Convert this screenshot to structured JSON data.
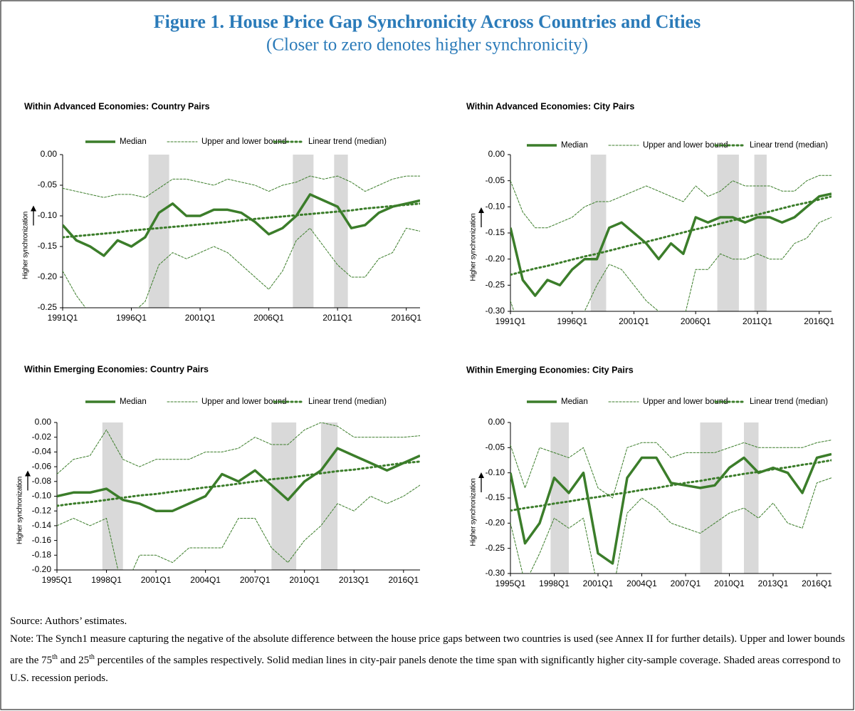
{
  "header": {
    "title": "Figure 1. House Price Gap Synchronicity Across Countries and Cities",
    "subtitle": "(Closer to zero denotes higher synchronicity)"
  },
  "chart_data": [
    {
      "type": "line",
      "title": "Within Advanced Economies: Country Pairs",
      "y_label": "Higher synchronization",
      "categories": [
        "1991Q1",
        null,
        null,
        null,
        null,
        "1996Q1",
        null,
        null,
        null,
        null,
        "2001Q1",
        null,
        null,
        null,
        null,
        "2006Q1",
        null,
        null,
        null,
        null,
        "2011Q1",
        null,
        null,
        null,
        null,
        "2016Q1",
        null
      ],
      "xlim": [
        1991,
        2017
      ],
      "shaded_periods": [
        [
          1997.25,
          1998.75
        ],
        [
          2007.75,
          2009.25
        ],
        [
          2010.75,
          2011.75
        ]
      ],
      "ylim": [
        -0.25,
        0
      ],
      "yticks": [
        {
          "value": 0,
          "label": "0.00"
        },
        -0.05,
        {
          "value": -0.1,
          "label": "-0.10"
        },
        -0.15,
        {
          "value": -0.2,
          "label": "-0.20"
        },
        -0.25
      ],
      "series": [
        {
          "name": "Median",
          "color": "#3b7d2a",
          "values": [
            -0.115,
            -0.14,
            -0.15,
            -0.165,
            -0.14,
            -0.15,
            -0.135,
            -0.095,
            -0.08,
            -0.1,
            -0.1,
            -0.09,
            -0.09,
            -0.095,
            -0.11,
            -0.13,
            -0.12,
            -0.1,
            -0.065,
            -0.075,
            -0.085,
            -0.12,
            -0.115,
            -0.095,
            -0.085,
            -0.08,
            -0.075
          ]
        },
        {
          "name": "Upper and lower bound",
          "color": "#3b7d2a",
          "values": [
            -0.055,
            -0.06,
            -0.065,
            -0.07,
            -0.065,
            -0.065,
            -0.07,
            -0.055,
            -0.04,
            -0.04,
            -0.045,
            -0.05,
            -0.04,
            -0.045,
            -0.05,
            -0.06,
            -0.05,
            -0.045,
            -0.035,
            -0.04,
            -0.035,
            -0.045,
            -0.06,
            -0.05,
            -0.04,
            -0.035,
            -0.035
          ],
          "lower": [
            -0.19,
            -0.23,
            -0.26,
            -0.28,
            -0.27,
            -0.26,
            -0.24,
            -0.18,
            -0.16,
            -0.17,
            -0.16,
            -0.15,
            -0.16,
            -0.18,
            -0.2,
            -0.22,
            -0.19,
            -0.14,
            -0.12,
            -0.15,
            -0.18,
            -0.2,
            -0.2,
            -0.17,
            -0.16,
            -0.12,
            -0.125
          ]
        },
        {
          "name": "Linear trend (median)",
          "color": "#3b7d2a",
          "values": [
            -0.135,
            -0.133,
            -0.131,
            -0.129,
            -0.127,
            -0.124,
            -0.122,
            -0.12,
            -0.118,
            -0.116,
            -0.114,
            -0.112,
            -0.11,
            -0.107,
            -0.105,
            -0.103,
            -0.101,
            -0.099,
            -0.097,
            -0.095,
            -0.093,
            -0.091,
            -0.088,
            -0.086,
            -0.084,
            -0.082,
            -0.08
          ]
        }
      ]
    },
    {
      "type": "line",
      "title": "Within Advanced Economies: City Pairs",
      "y_label": "Higher synchronization",
      "categories": [
        "1991Q1",
        null,
        null,
        null,
        null,
        "1996Q1",
        null,
        null,
        null,
        null,
        "2001Q1",
        null,
        null,
        null,
        null,
        "2006Q1",
        null,
        null,
        null,
        null,
        "2011Q1",
        null,
        null,
        null,
        null,
        "2016Q1",
        null
      ],
      "xlim": [
        1991,
        2017
      ],
      "shaded_periods": [
        [
          1997.5,
          1998.75
        ],
        [
          2007.75,
          2009.5
        ],
        [
          2010.75,
          2011.75
        ]
      ],
      "ylim": [
        -0.3,
        0
      ],
      "yticks": [
        {
          "value": 0,
          "label": "0.00"
        },
        -0.05,
        {
          "value": -0.1,
          "label": "-0.10"
        },
        -0.15,
        {
          "value": -0.2,
          "label": "-0.20"
        },
        -0.25,
        {
          "value": -0.3,
          "label": "-0.30"
        }
      ],
      "series": [
        {
          "name": "Median",
          "color": "#3b7d2a",
          "values": [
            -0.14,
            -0.24,
            -0.27,
            -0.24,
            -0.25,
            -0.22,
            -0.2,
            -0.2,
            -0.14,
            -0.13,
            -0.15,
            -0.17,
            -0.2,
            -0.17,
            -0.19,
            -0.12,
            -0.13,
            -0.12,
            -0.12,
            -0.13,
            -0.12,
            -0.12,
            -0.13,
            -0.12,
            -0.1,
            -0.08,
            -0.075
          ]
        },
        {
          "name": "Upper and lower bound",
          "color": "#3b7d2a",
          "values": [
            -0.05,
            -0.11,
            -0.14,
            -0.14,
            -0.13,
            -0.12,
            -0.1,
            -0.09,
            -0.09,
            -0.08,
            -0.07,
            -0.06,
            -0.07,
            -0.08,
            -0.09,
            -0.06,
            -0.08,
            -0.07,
            -0.05,
            -0.06,
            -0.06,
            -0.06,
            -0.07,
            -0.07,
            -0.05,
            -0.04,
            -0.04
          ],
          "lower": [
            -0.28,
            -0.35,
            -0.38,
            -0.36,
            -0.34,
            -0.32,
            -0.3,
            -0.25,
            -0.21,
            -0.22,
            -0.25,
            -0.28,
            -0.3,
            -0.32,
            -0.32,
            -0.22,
            -0.22,
            -0.19,
            -0.2,
            -0.2,
            -0.19,
            -0.2,
            -0.2,
            -0.17,
            -0.16,
            -0.13,
            -0.12
          ]
        },
        {
          "name": "Linear trend (median)",
          "color": "#3b7d2a",
          "values": [
            -0.23,
            -0.224,
            -0.218,
            -0.213,
            -0.207,
            -0.201,
            -0.195,
            -0.19,
            -0.184,
            -0.178,
            -0.172,
            -0.167,
            -0.161,
            -0.155,
            -0.149,
            -0.143,
            -0.138,
            -0.132,
            -0.126,
            -0.12,
            -0.115,
            -0.109,
            -0.103,
            -0.097,
            -0.092,
            -0.086,
            -0.08
          ]
        }
      ]
    },
    {
      "type": "line",
      "title": "Within Emerging Economies: Country Pairs",
      "y_label": "Higher synchronization",
      "categories": [
        "1995Q1",
        null,
        null,
        "1998Q1",
        null,
        null,
        "2001Q1",
        null,
        null,
        "2004Q1",
        null,
        null,
        "2007Q1",
        null,
        null,
        "2010Q1",
        null,
        null,
        "2013Q1",
        null,
        null,
        "2016Q1",
        null
      ],
      "xlim": [
        1995,
        2017
      ],
      "shaded_periods": [
        [
          1997.75,
          1999
        ],
        [
          2008,
          2009.5
        ],
        [
          2011,
          2012
        ]
      ],
      "ylim": [
        -0.2,
        0
      ],
      "yticks": [
        {
          "value": 0,
          "label": "0.00"
        },
        -0.02,
        -0.04,
        -0.06,
        -0.08,
        {
          "value": -0.1,
          "label": "-0.10"
        },
        -0.12,
        -0.14,
        -0.16,
        -0.18,
        {
          "value": -0.2,
          "label": "-0.20"
        }
      ],
      "series": [
        {
          "name": "Median",
          "color": "#3b7d2a",
          "values": [
            -0.1,
            -0.095,
            -0.095,
            -0.09,
            -0.105,
            -0.11,
            -0.12,
            -0.12,
            -0.11,
            -0.1,
            -0.07,
            -0.08,
            -0.065,
            -0.085,
            -0.105,
            -0.08,
            -0.065,
            -0.035,
            -0.045,
            -0.055,
            -0.065,
            -0.055,
            -0.045
          ]
        },
        {
          "name": "Upper and lower bound",
          "color": "#3b7d2a",
          "values": [
            -0.07,
            -0.05,
            -0.045,
            -0.01,
            -0.05,
            -0.06,
            -0.05,
            -0.05,
            -0.05,
            -0.04,
            -0.04,
            -0.035,
            -0.02,
            -0.03,
            -0.03,
            -0.01,
            0,
            -0.005,
            -0.02,
            -0.02,
            -0.02,
            -0.02,
            -0.018
          ],
          "lower": [
            -0.14,
            -0.13,
            -0.14,
            -0.13,
            -0.23,
            -0.18,
            -0.18,
            -0.19,
            -0.17,
            -0.17,
            -0.17,
            -0.13,
            -0.13,
            -0.17,
            -0.19,
            -0.16,
            -0.14,
            -0.11,
            -0.12,
            -0.1,
            -0.11,
            -0.1,
            -0.085
          ]
        },
        {
          "name": "Linear trend (median)",
          "color": "#3b7d2a",
          "values": [
            -0.113,
            -0.11,
            -0.108,
            -0.105,
            -0.102,
            -0.099,
            -0.097,
            -0.094,
            -0.091,
            -0.088,
            -0.086,
            -0.083,
            -0.08,
            -0.077,
            -0.075,
            -0.072,
            -0.069,
            -0.066,
            -0.064,
            -0.061,
            -0.058,
            -0.055,
            -0.053
          ]
        }
      ]
    },
    {
      "type": "line",
      "title": "Within Emerging Economies: City Pairs",
      "y_label": "Higher synchronization",
      "categories": [
        "1995Q1",
        null,
        null,
        "1998Q1",
        null,
        null,
        "2001Q1",
        null,
        null,
        "2004Q1",
        null,
        null,
        "2007Q1",
        null,
        null,
        "2010Q1",
        null,
        null,
        "2013Q1",
        null,
        null,
        "2016Q1",
        null
      ],
      "xlim": [
        1995,
        2017
      ],
      "shaded_periods": [
        [
          1997.75,
          1999
        ],
        [
          2008,
          2009.5
        ],
        [
          2011,
          2012
        ]
      ],
      "ylim": [
        -0.3,
        0
      ],
      "yticks": [
        {
          "value": 0,
          "label": "0.00"
        },
        -0.05,
        {
          "value": -0.1,
          "label": "-0.10"
        },
        -0.15,
        {
          "value": -0.2,
          "label": "-0.20"
        },
        -0.25,
        {
          "value": -0.3,
          "label": "-0.30"
        }
      ],
      "series": [
        {
          "name": "Median",
          "color": "#3b7d2a",
          "values": [
            -0.1,
            -0.24,
            -0.2,
            -0.11,
            -0.14,
            -0.1,
            -0.26,
            -0.28,
            -0.11,
            -0.07,
            -0.07,
            -0.12,
            -0.125,
            -0.13,
            -0.125,
            -0.09,
            -0.07,
            -0.1,
            -0.09,
            -0.1,
            -0.14,
            -0.07,
            -0.063
          ]
        },
        {
          "name": "Upper and lower bound",
          "color": "#3b7d2a",
          "values": [
            -0.045,
            -0.13,
            -0.05,
            -0.06,
            -0.07,
            -0.05,
            -0.13,
            -0.15,
            -0.05,
            -0.04,
            -0.04,
            -0.07,
            -0.06,
            -0.06,
            -0.06,
            -0.05,
            -0.04,
            -0.05,
            -0.05,
            -0.05,
            -0.05,
            -0.04,
            -0.035
          ],
          "lower": [
            -0.2,
            -0.32,
            -0.26,
            -0.19,
            -0.21,
            -0.19,
            -0.33,
            -0.34,
            -0.18,
            -0.15,
            -0.17,
            -0.2,
            -0.21,
            -0.22,
            -0.2,
            -0.18,
            -0.17,
            -0.19,
            -0.16,
            -0.2,
            -0.21,
            -0.12,
            -0.11
          ]
        },
        {
          "name": "Linear trend (median)",
          "color": "#3b7d2a",
          "values": [
            -0.175,
            -0.17,
            -0.166,
            -0.161,
            -0.157,
            -0.152,
            -0.148,
            -0.143,
            -0.139,
            -0.134,
            -0.13,
            -0.125,
            -0.12,
            -0.116,
            -0.111,
            -0.107,
            -0.102,
            -0.098,
            -0.093,
            -0.089,
            -0.084,
            -0.08,
            -0.075
          ]
        }
      ]
    }
  ],
  "footer": {
    "source": "Source: Authors’ estimates.",
    "note": [
      "Note: The Synch1 measure capturing the negative of the absolute difference between the house price gaps between two countries is used (see Annex II for further details). Upper and lower bounds are the 75",
      "th",
      " and 25",
      "th",
      " percentiles of the samples respectively. Solid median lines in city-pair panels denote the time span with significantly higher city-sample coverage. Shaded areas correspond to U.S. recession periods."
    ]
  }
}
